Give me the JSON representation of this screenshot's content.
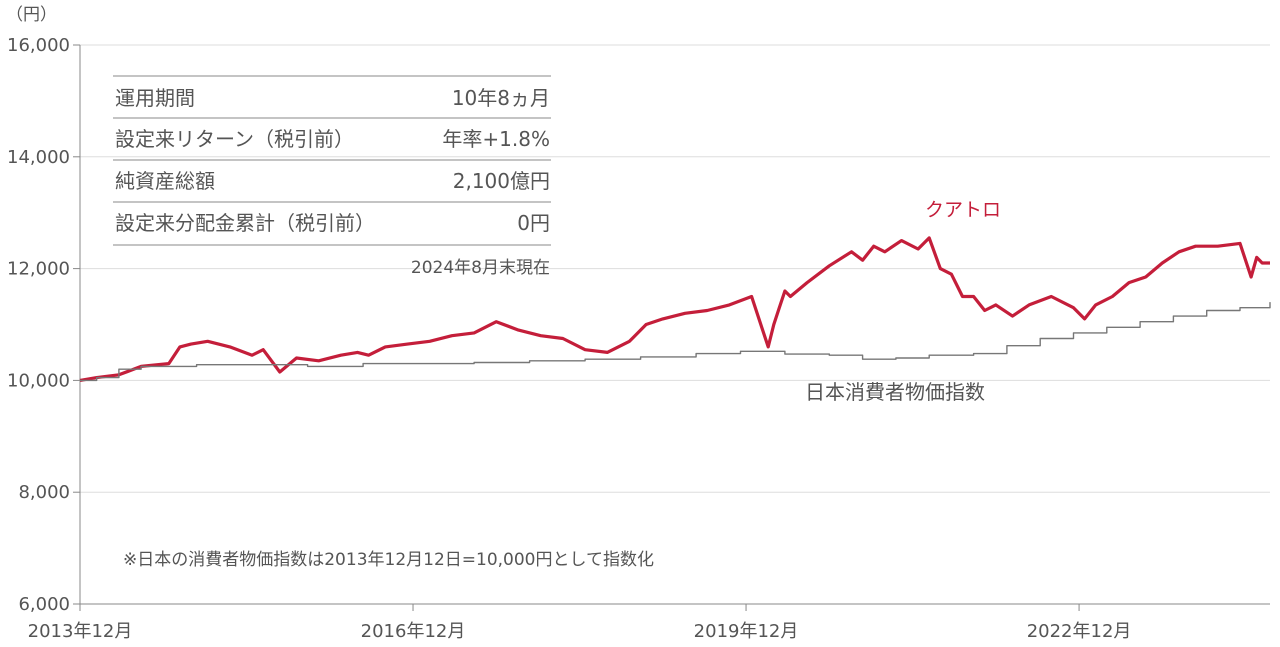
{
  "colors": {
    "quattro": "#c41e3a",
    "cpi": "#777777",
    "grid": "#dddddd",
    "axis": "#888888"
  },
  "chart_data": {
    "type": "line",
    "ylabel": "（円）",
    "ylim": [
      6000,
      16000
    ],
    "y_ticks": [
      "16,000",
      "14,000",
      "12,000",
      "10,000",
      "8,000",
      "6,000"
    ],
    "y_tick_values": [
      16000,
      14000,
      12000,
      10000,
      8000,
      6000
    ],
    "xlim": [
      2013.95,
      2024.67
    ],
    "x_ticks": [
      "2013年12月",
      "2016年12月",
      "2019年12月",
      "2022年12月"
    ],
    "x_tick_values": [
      2013.95,
      2016.95,
      2019.95,
      2022.95
    ],
    "grid": "horizontal",
    "series": [
      {
        "name": "クアトロ",
        "x": [
          2013.95,
          2014.1,
          2014.3,
          2014.5,
          2014.75,
          2014.85,
          2014.95,
          2015.1,
          2015.3,
          2015.5,
          2015.6,
          2015.75,
          2015.9,
          2016.1,
          2016.3,
          2016.45,
          2016.55,
          2016.7,
          2016.9,
          2017.1,
          2017.3,
          2017.5,
          2017.7,
          2017.9,
          2018.1,
          2018.3,
          2018.5,
          2018.7,
          2018.9,
          2019.05,
          2019.2,
          2019.4,
          2019.6,
          2019.8,
          2020.0,
          2020.15,
          2020.2,
          2020.25,
          2020.3,
          2020.35,
          2020.5,
          2020.7,
          2020.9,
          2021.0,
          2021.1,
          2021.2,
          2021.35,
          2021.5,
          2021.6,
          2021.7,
          2021.8,
          2021.9,
          2022.0,
          2022.1,
          2022.2,
          2022.35,
          2022.5,
          2022.7,
          2022.9,
          2023.0,
          2023.1,
          2023.25,
          2023.4,
          2023.55,
          2023.7,
          2023.85,
          2024.0,
          2024.2,
          2024.4,
          2024.5,
          2024.55,
          2024.6,
          2024.67
        ],
        "y": [
          10000,
          10050,
          10100,
          10250,
          10300,
          10600,
          10650,
          10700,
          10600,
          10450,
          10550,
          10150,
          10400,
          10350,
          10450,
          10500,
          10450,
          10600,
          10650,
          10700,
          10800,
          10850,
          11050,
          10900,
          10800,
          10750,
          10550,
          10500,
          10700,
          11000,
          11100,
          11200,
          11250,
          11350,
          11500,
          10600,
          11000,
          11300,
          11600,
          11500,
          11750,
          12050,
          12300,
          12150,
          12400,
          12300,
          12500,
          12350,
          12550,
          12000,
          11900,
          11500,
          11500,
          11250,
          11350,
          11150,
          11350,
          11500,
          11300,
          11100,
          11350,
          11500,
          11750,
          11850,
          12100,
          12300,
          12400,
          12400,
          12450,
          11850,
          12200,
          12100,
          12100
        ]
      },
      {
        "name": "日本消費者物価指数",
        "x": [
          2013.95,
          2014.1,
          2014.3,
          2014.5,
          2015.0,
          2015.5,
          2016.0,
          2016.5,
          2017.0,
          2017.5,
          2018.0,
          2018.5,
          2019.0,
          2019.5,
          2019.9,
          2020.3,
          2020.7,
          2021.0,
          2021.3,
          2021.6,
          2022.0,
          2022.3,
          2022.6,
          2022.9,
          2023.2,
          2023.5,
          2023.8,
          2024.1,
          2024.4,
          2024.67
        ],
        "y": [
          10000,
          10050,
          10200,
          10250,
          10280,
          10280,
          10250,
          10300,
          10300,
          10320,
          10350,
          10380,
          10420,
          10480,
          10520,
          10470,
          10450,
          10380,
          10400,
          10450,
          10480,
          10620,
          10750,
          10850,
          10950,
          11050,
          11150,
          11250,
          11300,
          11400
        ]
      }
    ],
    "annotations": {
      "quattro_label": "クアトロ",
      "cpi_label": "日本消費者物価指数",
      "footnote": "※日本の消費者物価指数は2013年12月12日=10,000円として指数化"
    }
  },
  "info_table": {
    "rows": [
      {
        "label": "運用期間",
        "value": "10年8ヵ月"
      },
      {
        "label": "設定来リターン（税引前）",
        "value": "年率+1.8%"
      },
      {
        "label": "純資産総額",
        "value": "2,100億円"
      },
      {
        "label": "設定来分配金累計（税引前）",
        "value": "0円"
      }
    ],
    "as_of": "2024年8月末現在"
  }
}
